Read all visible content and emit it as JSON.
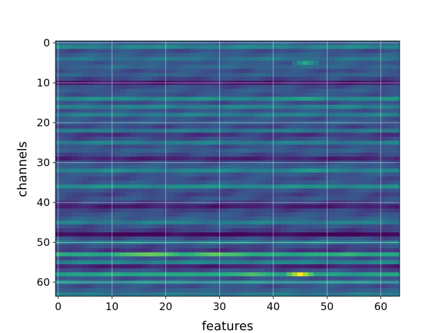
{
  "chart_data": {
    "type": "heatmap",
    "title": "",
    "xlabel": "features",
    "ylabel": "channels",
    "n_cols": 64,
    "n_rows": 64,
    "xlim": [
      -0.5,
      63.5
    ],
    "ylim": [
      63.5,
      -0.5
    ],
    "x_ticks": [
      0,
      10,
      20,
      30,
      40,
      50,
      60
    ],
    "y_ticks": [
      0,
      10,
      20,
      30,
      40,
      50,
      60
    ],
    "x_tick_labels": [
      "0",
      "10",
      "20",
      "30",
      "40",
      "50",
      "60"
    ],
    "y_tick_labels": [
      "0",
      "10",
      "20",
      "30",
      "40",
      "50",
      "60"
    ],
    "grid": true,
    "colormap": "viridis",
    "value_range": [
      0,
      1
    ],
    "row_base_values": [
      0.3,
      0.45,
      0.25,
      0.3,
      0.38,
      0.28,
      0.33,
      0.25,
      0.3,
      0.22,
      0.08,
      0.24,
      0.28,
      0.26,
      0.48,
      0.25,
      0.44,
      0.27,
      0.42,
      0.26,
      0.3,
      0.23,
      0.4,
      0.18,
      0.24,
      0.42,
      0.25,
      0.3,
      0.23,
      0.12,
      0.25,
      0.3,
      0.45,
      0.27,
      0.24,
      0.28,
      0.48,
      0.25,
      0.22,
      0.26,
      0.2,
      0.1,
      0.22,
      0.26,
      0.3,
      0.42,
      0.25,
      0.2,
      0.02,
      0.24,
      0.42,
      0.23,
      0.18,
      0.62,
      0.26,
      0.44,
      0.12,
      0.24,
      0.58,
      0.26,
      0.44,
      0.25,
      0.3,
      0.4
    ],
    "hotspots": [
      {
        "row": 5,
        "col_center": 46,
        "width": 3,
        "value": 0.62
      },
      {
        "row": 14,
        "col_center": 46,
        "width": 4,
        "value": 0.58
      },
      {
        "row": 32,
        "col_center": 47,
        "width": 4,
        "value": 0.55
      },
      {
        "row": 53,
        "col_center": 17,
        "width": 8,
        "value": 0.78
      },
      {
        "row": 53,
        "col_center": 29,
        "width": 6,
        "value": 0.76
      },
      {
        "row": 58,
        "col_center": 45,
        "width": 3,
        "value": 1.0
      },
      {
        "row": 58,
        "col_center": 36,
        "width": 6,
        "value": 0.72
      },
      {
        "row": 58,
        "col_center": 20,
        "width": 6,
        "value": 0.62
      },
      {
        "row": 48,
        "col_center": 55,
        "width": 6,
        "value": 0.0
      }
    ]
  }
}
